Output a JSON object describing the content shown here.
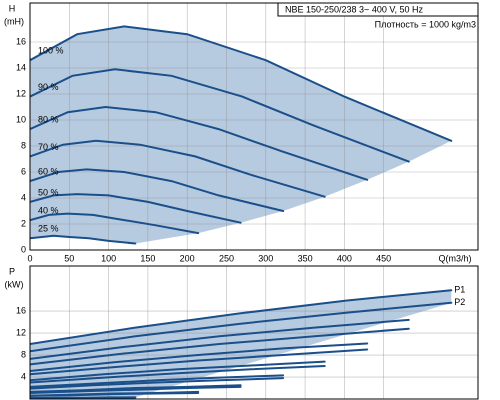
{
  "chart_data": [
    {
      "type": "line",
      "title": "NBE 150-250/238   3~ 400 V, 50 Hz",
      "subtitle": "Плотность = 1000 kg/m3",
      "ylabel": "H",
      "yunit": "(mH)",
      "xlabel": "Q(m3/h)",
      "xlim": [
        0,
        570
      ],
      "xticks": [
        0,
        50,
        100,
        150,
        200,
        250,
        300,
        350,
        400,
        450
      ],
      "ylim": [
        0,
        19
      ],
      "yticks": [
        0,
        2,
        4,
        6,
        8,
        10,
        12,
        14,
        16
      ],
      "grid": true,
      "color": "#1b4f8a",
      "area_color": "#b7cbe0",
      "series": [
        {
          "name": "100 %",
          "x": [
            0,
            60,
            120,
            200,
            300,
            400,
            536
          ],
          "values": [
            14.6,
            16.6,
            17.2,
            16.6,
            14.6,
            11.8,
            8.4
          ]
        },
        {
          "name": "90 %",
          "x": [
            0,
            54,
            108,
            180,
            270,
            360,
            482
          ],
          "values": [
            11.8,
            13.4,
            13.9,
            13.4,
            11.8,
            9.6,
            6.8
          ]
        },
        {
          "name": "80 %",
          "x": [
            0,
            48,
            96,
            160,
            240,
            320,
            429
          ],
          "values": [
            9.3,
            10.6,
            11.0,
            10.6,
            9.3,
            7.6,
            5.4
          ]
        },
        {
          "name": "70 %",
          "x": [
            0,
            42,
            84,
            140,
            210,
            280,
            375
          ],
          "values": [
            7.2,
            8.1,
            8.4,
            8.1,
            7.2,
            5.8,
            4.1
          ]
        },
        {
          "name": "60 %",
          "x": [
            0,
            36,
            72,
            120,
            180,
            240,
            322
          ],
          "values": [
            5.3,
            6.0,
            6.2,
            6.0,
            5.3,
            4.2,
            3.0
          ]
        },
        {
          "name": "50 %",
          "x": [
            0,
            30,
            60,
            100,
            150,
            200,
            268
          ],
          "values": [
            3.7,
            4.2,
            4.3,
            4.2,
            3.7,
            3.0,
            2.1
          ]
        },
        {
          "name": "40 %",
          "x": [
            0,
            24,
            48,
            80,
            120,
            160,
            214
          ],
          "values": [
            2.3,
            2.7,
            2.8,
            2.7,
            2.3,
            1.9,
            1.3
          ]
        },
        {
          "name": "25 %",
          "x": [
            0,
            15,
            30,
            50,
            75,
            100,
            134
          ],
          "values": [
            0.9,
            1.0,
            1.1,
            1.0,
            0.9,
            0.7,
            0.5
          ]
        }
      ]
    },
    {
      "type": "line",
      "ylabel": "P",
      "yunit": "(kW)",
      "xlim": [
        0,
        570
      ],
      "ylim": [
        0,
        24.2
      ],
      "yticks": [
        4,
        8,
        12,
        16
      ],
      "grid": true,
      "color": "#1b4f8a",
      "area_color": "#b7cbe0",
      "series": [
        {
          "name": "P1",
          "x": [
            0,
            134,
            268,
            402,
            536
          ],
          "values": [
            10,
            13,
            15.6,
            17.9,
            19.8
          ]
        },
        {
          "name": "P2",
          "x": [
            0,
            134,
            268,
            402,
            536
          ],
          "values": [
            8.7,
            11.4,
            13.7,
            15.7,
            17.5
          ]
        },
        {
          "x": [
            0,
            121,
            241,
            362,
            482
          ],
          "values": [
            7.3,
            9.5,
            11.4,
            13.0,
            14.4
          ]
        },
        {
          "x": [
            0,
            121,
            241,
            362,
            482
          ],
          "values": [
            6.3,
            8.3,
            10.0,
            11.4,
            12.8
          ]
        },
        {
          "x": [
            0,
            107,
            214,
            322,
            429
          ],
          "values": [
            5.1,
            6.7,
            8.0,
            9.2,
            10.1
          ]
        },
        {
          "x": [
            0,
            107,
            214,
            322,
            429
          ],
          "values": [
            4.5,
            5.8,
            7.0,
            8.0,
            9.0
          ]
        },
        {
          "x": [
            0,
            94,
            188,
            281,
            375
          ],
          "values": [
            3.4,
            4.5,
            5.4,
            6.1,
            6.8
          ]
        },
        {
          "x": [
            0,
            94,
            188,
            281,
            375
          ],
          "values": [
            3.0,
            3.9,
            4.7,
            5.4,
            6.0
          ]
        },
        {
          "x": [
            0,
            80,
            161,
            241,
            322
          ],
          "values": [
            2.2,
            2.8,
            3.4,
            3.9,
            4.3
          ]
        },
        {
          "x": [
            0,
            80,
            161,
            241,
            322
          ],
          "values": [
            1.9,
            2.5,
            3.0,
            3.4,
            3.8
          ]
        },
        {
          "x": [
            0,
            67,
            134,
            201,
            268
          ],
          "values": [
            1.3,
            1.6,
            2.0,
            2.2,
            2.5
          ]
        },
        {
          "x": [
            0,
            67,
            134,
            201,
            268
          ],
          "values": [
            1.1,
            1.4,
            1.7,
            2.0,
            2.2
          ]
        },
        {
          "x": [
            0,
            54,
            107,
            161,
            214
          ],
          "values": [
            0.6,
            0.8,
            1.0,
            1.1,
            1.3
          ]
        },
        {
          "x": [
            0,
            54,
            107,
            161,
            214
          ],
          "values": [
            0.6,
            0.7,
            0.9,
            1.0,
            1.1
          ]
        },
        {
          "x": [
            0,
            34,
            67,
            101,
            134
          ],
          "values": [
            0.2,
            0.2,
            0.2,
            0.3,
            0.3
          ]
        },
        {
          "x": [
            0,
            34,
            67,
            101,
            134
          ],
          "values": [
            0.1,
            0.2,
            0.2,
            0.2,
            0.3
          ]
        }
      ]
    }
  ]
}
